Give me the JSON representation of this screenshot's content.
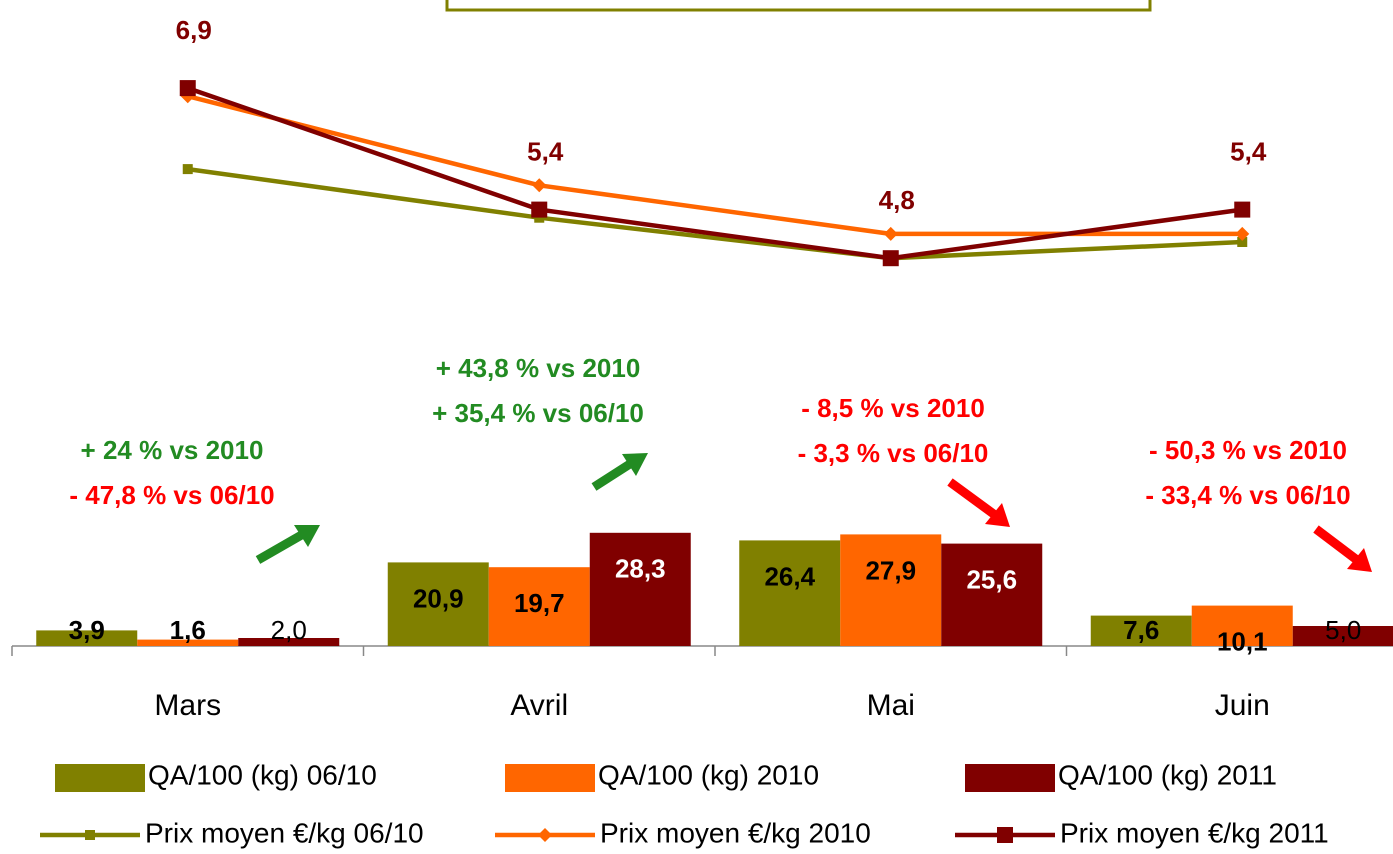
{
  "chart_data": {
    "type": "combo",
    "categories": [
      "Mars",
      "Avril",
      "Mai",
      "Juin"
    ],
    "ylim": [
      0,
      40
    ],
    "y2lim": [
      4,
      8
    ],
    "series": [
      {
        "name": "QA/100 (kg) 06/10",
        "type": "bar",
        "color": "#808000",
        "values": [
          3.9,
          20.9,
          26.4,
          7.6
        ],
        "value_labels": [
          "3,9",
          "20,9",
          "26,4",
          "7,6"
        ]
      },
      {
        "name": "QA/100 (kg) 2010",
        "type": "bar",
        "color": "#ff6600",
        "values": [
          1.6,
          19.7,
          27.9,
          10.1
        ],
        "value_labels": [
          "1,6",
          "19,7",
          "27,9",
          "10,1"
        ]
      },
      {
        "name": "QA/100 (kg) 2011",
        "type": "bar",
        "color": "#800000",
        "values": [
          2.0,
          28.3,
          25.6,
          5.0
        ],
        "value_labels": [
          "2,0",
          "28,3",
          "25,6",
          "5,0"
        ]
      },
      {
        "name": "Prix moyen €/kg 06/10",
        "type": "line",
        "axis": "y2",
        "color": "#808000",
        "marker": "square-small",
        "values": [
          5.9,
          5.3,
          4.8,
          5.0
        ]
      },
      {
        "name": "Prix moyen €/kg 2010",
        "type": "line",
        "axis": "y2",
        "color": "#ff6600",
        "marker": "diamond",
        "values": [
          6.8,
          5.7,
          5.1,
          5.1
        ]
      },
      {
        "name": "Prix moyen €/kg 2011",
        "type": "line",
        "axis": "y2",
        "color": "#800000",
        "marker": "square",
        "values": [
          6.9,
          5.4,
          4.8,
          5.4
        ],
        "value_labels": [
          "6,9",
          "5,4",
          "4,8",
          "5,4"
        ]
      }
    ],
    "annotations": [
      {
        "text": "+ 24 % vs 2010",
        "color": "#228b22"
      },
      {
        "text": "- 47,8 % vs 06/10",
        "color": "#ff0000"
      },
      {
        "text": "+ 43,8 % vs 2010",
        "color": "#228b22"
      },
      {
        "text": "+ 35,4 % vs 06/10",
        "color": "#228b22"
      },
      {
        "text": "- 8,5 % vs 2010",
        "color": "#ff0000"
      },
      {
        "text": "- 3,3 % vs 06/10",
        "color": "#ff0000"
      },
      {
        "text": "- 50,3 % vs 2010",
        "color": "#ff0000"
      },
      {
        "text": "- 33,4 % vs 06/10",
        "color": "#ff0000"
      }
    ]
  }
}
